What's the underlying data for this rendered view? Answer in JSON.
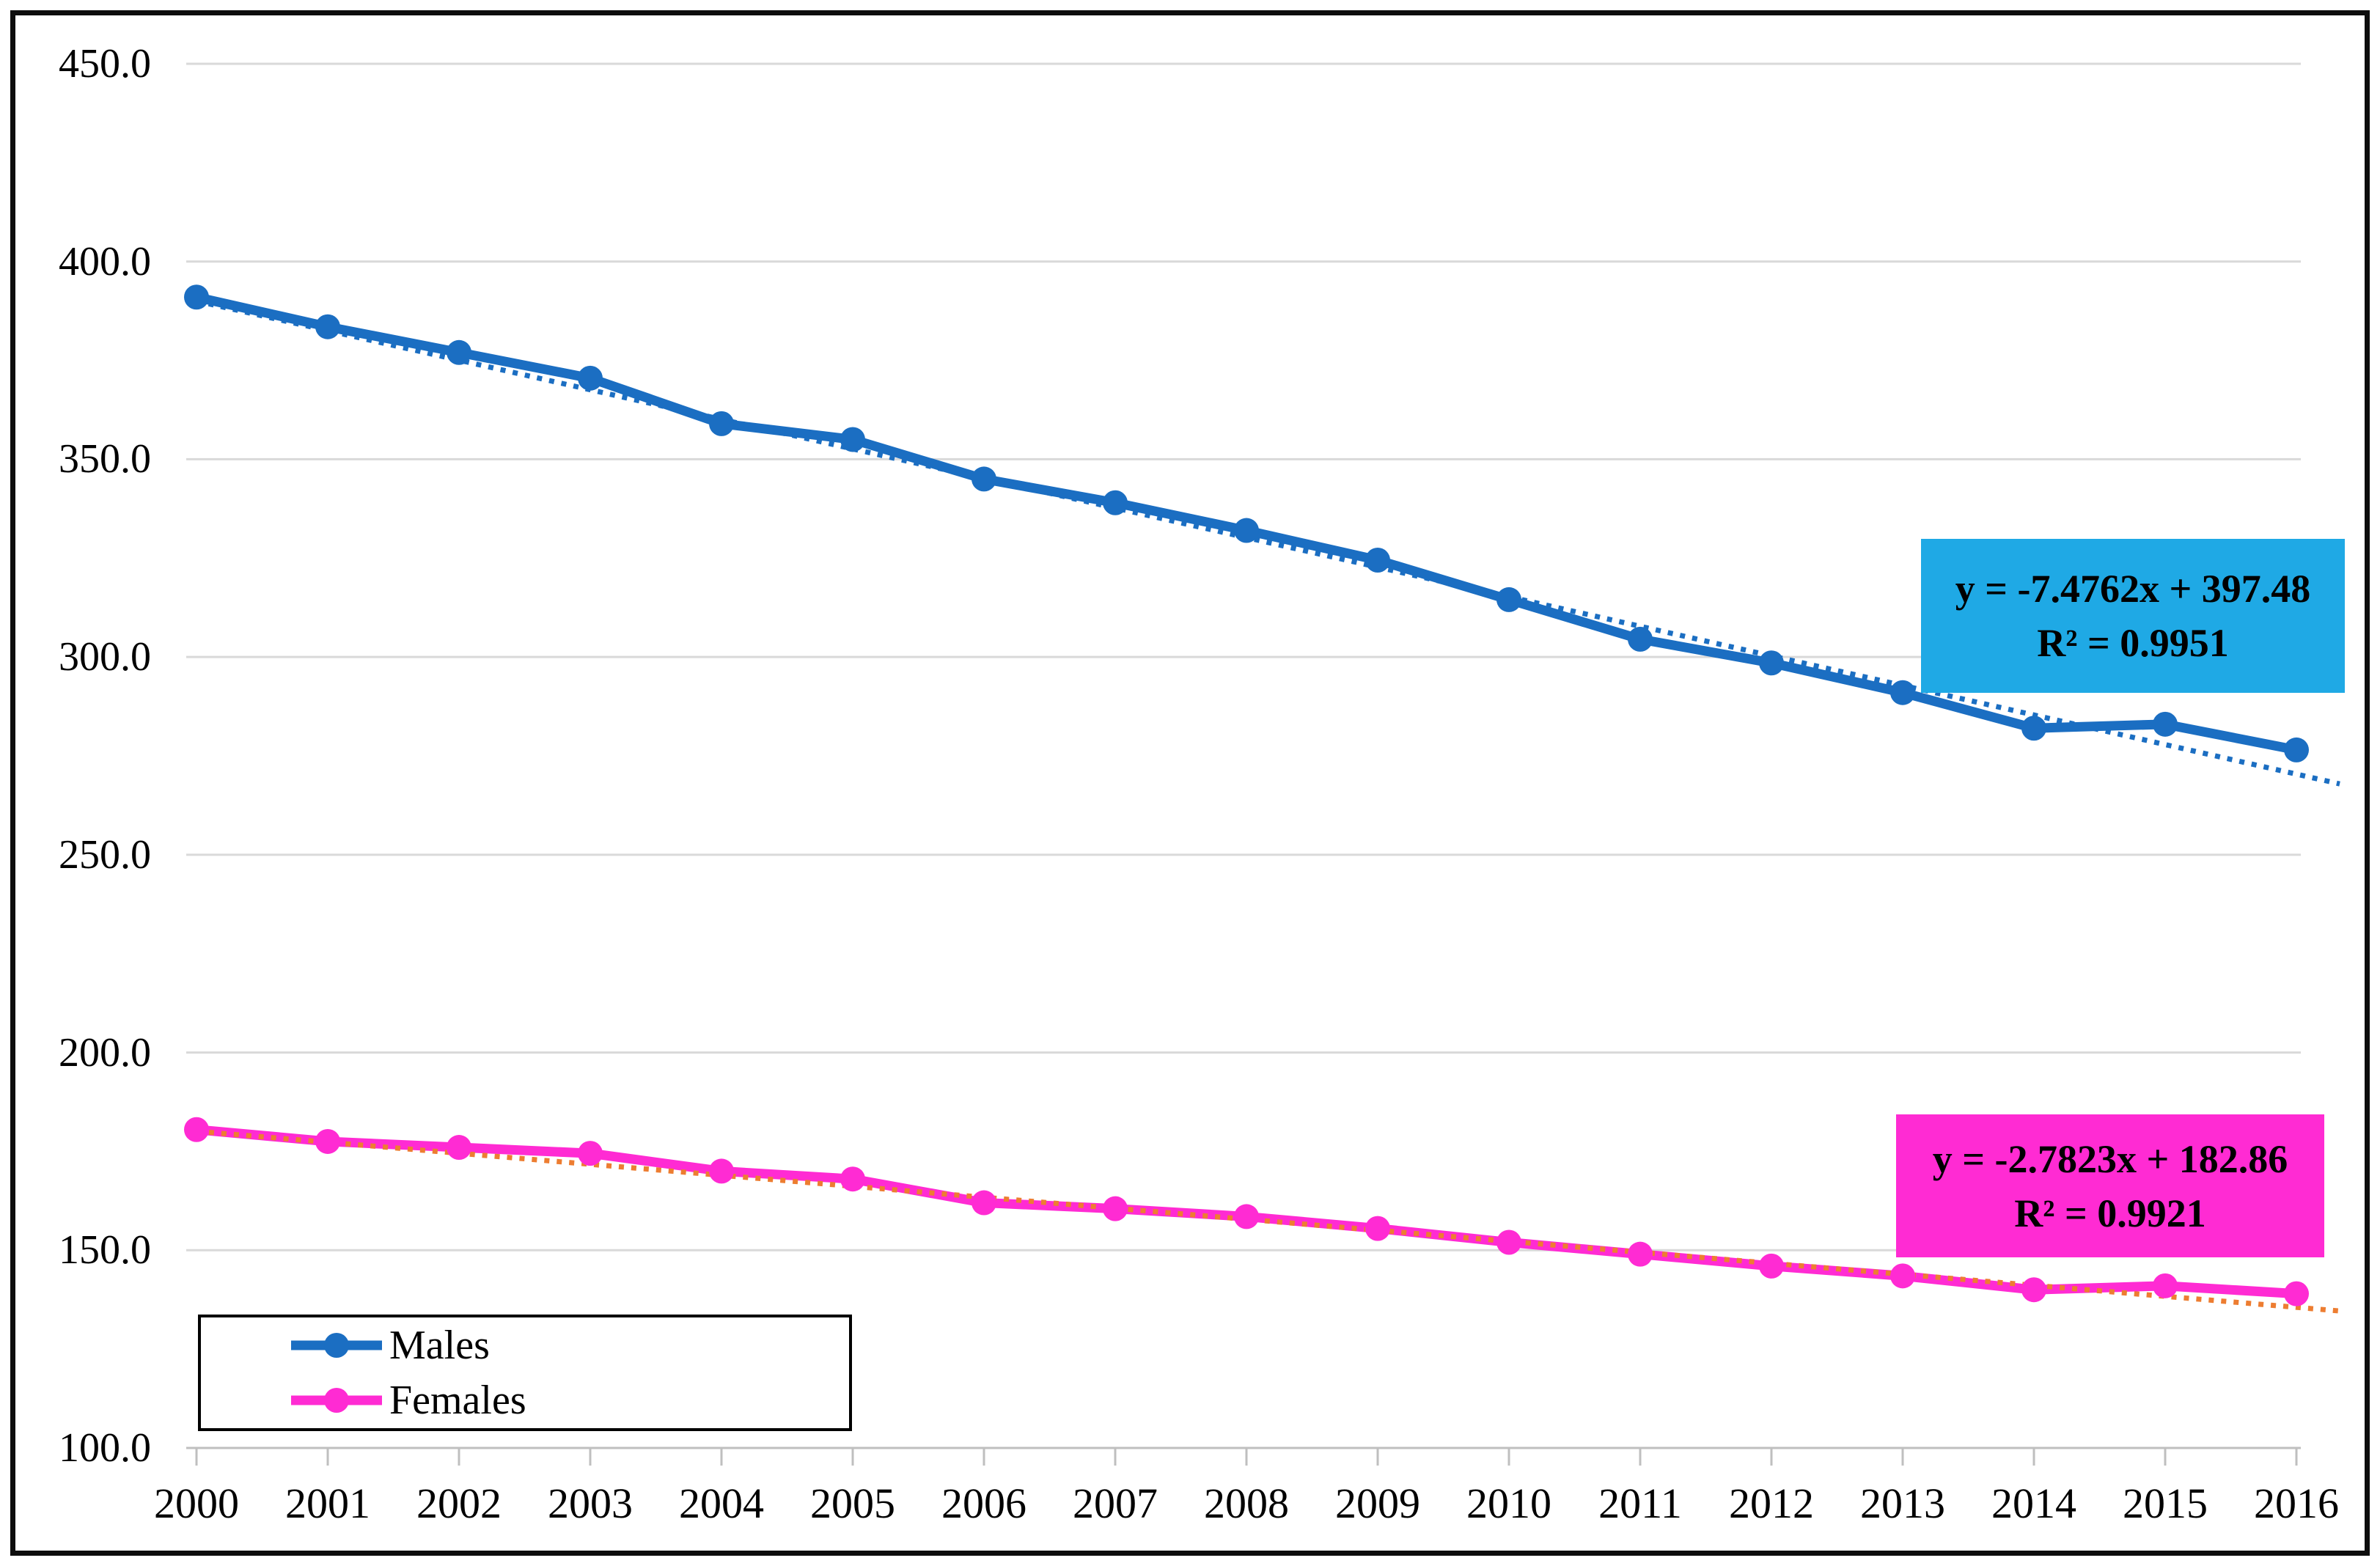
{
  "chart_data": {
    "type": "line",
    "title": "",
    "categories": [
      "2000",
      "2001",
      "2002",
      "2003",
      "2004",
      "2005",
      "2006",
      "2007",
      "2008",
      "2009",
      "2010",
      "2011",
      "2012",
      "2013",
      "2014",
      "2015",
      "2016"
    ],
    "series": [
      {
        "name": "Males",
        "color": "#1B6EC2",
        "values": [
          391.0,
          383.5,
          377.0,
          370.5,
          359.0,
          355.0,
          345.0,
          339.0,
          332.0,
          324.5,
          314.5,
          304.5,
          298.5,
          291.0,
          282.0,
          283.0,
          276.5
        ],
        "trendline": {
          "equation": "y = -7.4762x + 397.48",
          "r2": "R² = 0.9951",
          "slope": -7.4762,
          "intercept": 397.48,
          "color": "#1B6EC2",
          "label_bg": "#1FA9E5",
          "style": "dotted"
        }
      },
      {
        "name": "Females",
        "color": "#FF2BD3",
        "values": [
          180.5,
          177.5,
          176.0,
          174.5,
          170.0,
          168.0,
          162.0,
          160.5,
          158.5,
          155.5,
          152.0,
          149.0,
          146.0,
          143.5,
          140.0,
          141.0,
          139.0
        ],
        "trendline": {
          "equation": "y = -2.7823x + 182.86",
          "r2": "R² = 0.9921",
          "slope": -2.7823,
          "intercept": 182.86,
          "color": "#ED7D31",
          "label_bg": "#FF2BD3",
          "style": "dotted"
        }
      }
    ],
    "xlabel": "",
    "ylabel": "",
    "y_axis": {
      "min": 100,
      "max": 450,
      "step": 50,
      "tick_labels": [
        "450.0",
        "400.0",
        "350.0",
        "300.0",
        "250.0",
        "200.0",
        "150.0",
        "100.0"
      ]
    },
    "grid": true,
    "legend_position": "bottom-left",
    "colors": {
      "gridline": "#D9D9D9",
      "axis_line": "#BFBFBF",
      "text": "#000000",
      "frame": "#0D0D0D",
      "legend_border": "#000000",
      "background": "#FFFFFF"
    }
  }
}
